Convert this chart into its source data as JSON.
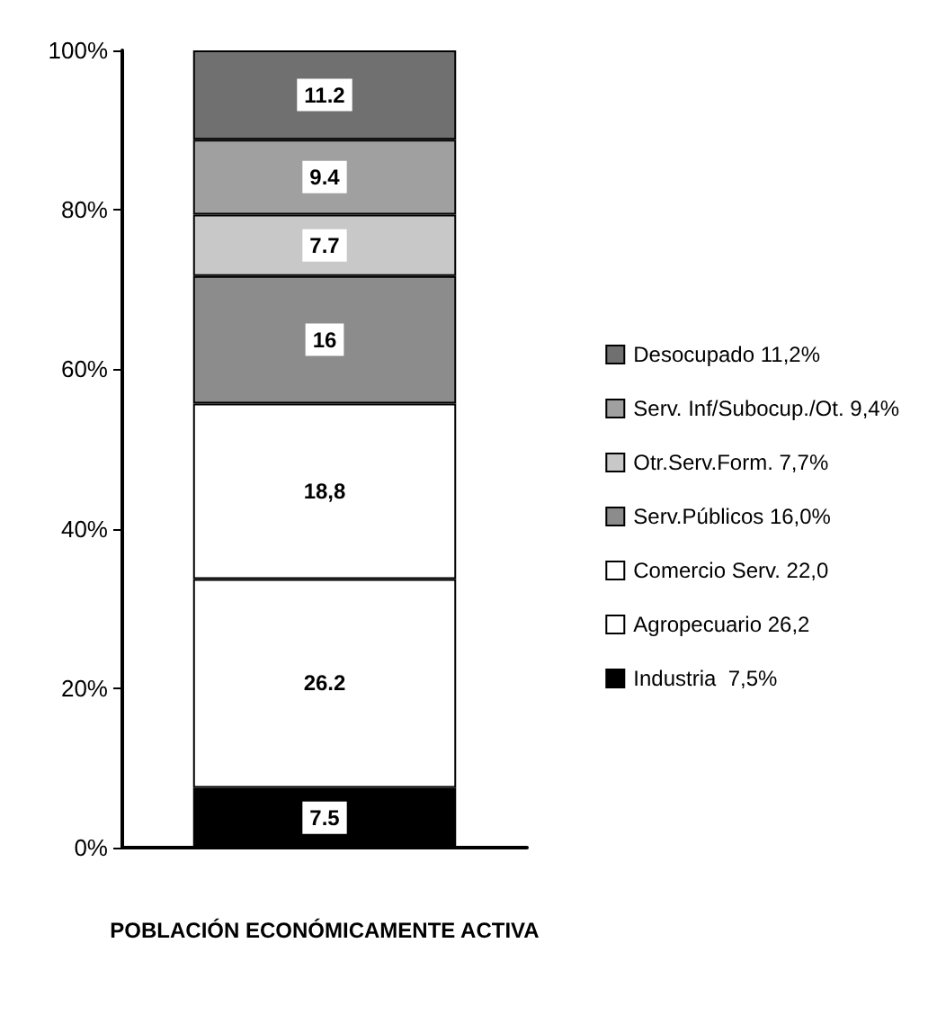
{
  "chart_data": {
    "type": "bar",
    "stacked": true,
    "xlabel": "POBLACIÓN ECONÓMICAMENTE ACTIVA",
    "categories": [
      null
    ],
    "ylim": [
      0,
      100
    ],
    "yticks": [
      {
        "value": 0,
        "label": "0%"
      },
      {
        "value": 20,
        "label": "20%"
      },
      {
        "value": 40,
        "label": "40%"
      },
      {
        "value": 60,
        "label": "60%"
      },
      {
        "value": 80,
        "label": "80%"
      },
      {
        "value": 100,
        "label": "100%"
      }
    ],
    "grid": false,
    "legend": "right",
    "annotations": [
      {
        "text": "18,8",
        "y": 44.7
      }
    ],
    "series": [
      {
        "name": "Industria  7,5%",
        "color": "#000000",
        "values": [
          7.5
        ],
        "value_labels": [
          "7.5"
        ]
      },
      {
        "name": "Agropecuario 26,2",
        "color": "#ffffff",
        "values": [
          26.2
        ],
        "value_labels": [
          "26.2"
        ]
      },
      {
        "name": "Comercio Serv. 22,0",
        "color": "#ffffff",
        "values": [
          22.0
        ],
        "value_labels": [
          null
        ]
      },
      {
        "name": "Serv.Públicos 16,0%",
        "color": "#8c8c8c",
        "values": [
          16.0
        ],
        "value_labels": [
          "16"
        ]
      },
      {
        "name": "Otr.Serv.Form. 7,7%",
        "color": "#c8c8c8",
        "values": [
          7.7
        ],
        "value_labels": [
          "7.7"
        ]
      },
      {
        "name": "Serv. Inf/Subocup./Ot. 9,4%",
        "color": "#a0a0a0",
        "values": [
          9.4
        ],
        "value_labels": [
          "9.4"
        ]
      },
      {
        "name": "Desocupado 11,2%",
        "color": "#707070",
        "values": [
          11.2
        ],
        "value_labels": [
          "11.2"
        ]
      }
    ]
  }
}
